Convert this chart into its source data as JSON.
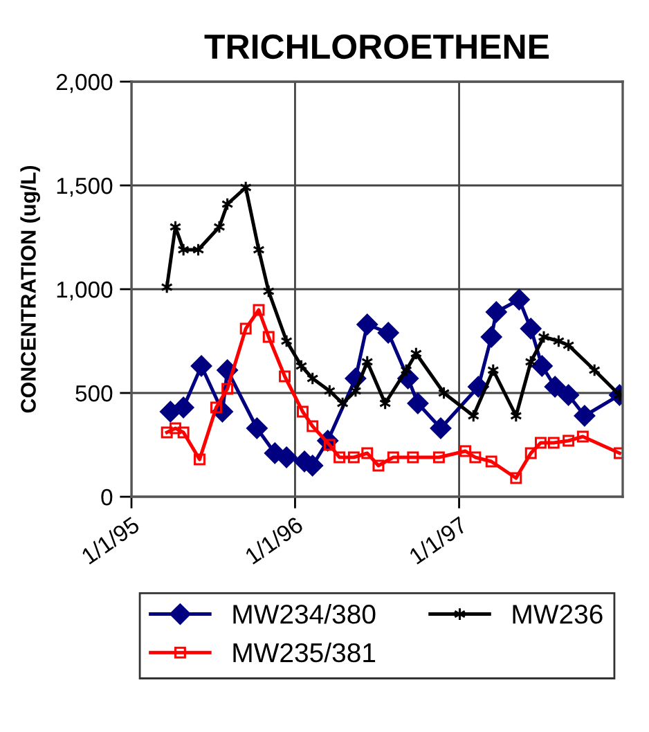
{
  "chart_data": {
    "type": "line",
    "title": "TRICHLOROETHENE",
    "ylabel": "CONCENTRATION (ug/L)",
    "xlim": [
      "1995-01-01",
      "1998-01-01"
    ],
    "xticks": [
      {
        "value": "1995-01-01",
        "label": "1/1/95"
      },
      {
        "value": "1996-01-01",
        "label": "1/1/96"
      },
      {
        "value": "1997-01-01",
        "label": "1/1/97"
      }
    ],
    "ylim": [
      0,
      2000
    ],
    "yticks": [
      0,
      {
        "value": 500,
        "label": "500"
      },
      {
        "value": 1000,
        "label": "1,000"
      },
      {
        "value": 1500,
        "label": "1,500"
      },
      {
        "value": 2000,
        "label": "2,000"
      }
    ],
    "grid": true,
    "legend": "bottom",
    "line_style": "solid",
    "series": [
      {
        "name": "MW234/380",
        "color": "#000080",
        "marker": "diamond",
        "x": [
          "1995-03-29",
          "1995-04-27",
          "1995-06-06",
          "1995-07-23",
          "1995-08-03",
          "1995-10-08",
          "1995-11-17",
          "1995-12-13",
          "1996-01-22",
          "1996-02-09",
          "1996-03-14",
          "1996-05-15",
          "1996-06-10",
          "1996-07-27",
          "1996-09-09",
          "1996-10-01",
          "1996-11-21",
          "1997-02-13",
          "1997-03-14",
          "1997-03-25",
          "1997-05-15",
          "1997-06-10",
          "1997-07-05",
          "1997-08-03",
          "1997-09-02",
          "1997-10-08",
          "1997-12-25"
        ],
        "values": [
          410,
          430,
          630,
          410,
          610,
          330,
          210,
          190,
          170,
          150,
          270,
          570,
          830,
          790,
          570,
          450,
          330,
          530,
          770,
          890,
          950,
          810,
          630,
          530,
          490,
          390,
          490
        ]
      },
      {
        "name": "MW235/381",
        "color": "#ff0000",
        "marker": "square",
        "x": [
          "1995-03-21",
          "1995-04-09",
          "1995-04-27",
          "1995-06-02",
          "1995-07-09",
          "1995-08-03",
          "1995-09-13",
          "1995-10-12",
          "1995-11-03",
          "1995-12-09",
          "1996-01-18",
          "1996-02-09",
          "1996-03-18",
          "1996-04-09",
          "1996-05-11",
          "1996-06-10",
          "1996-07-05",
          "1996-08-07",
          "1996-09-20",
          "1996-11-17",
          "1997-01-15",
          "1997-02-06",
          "1997-03-14",
          "1997-05-08",
          "1997-06-10",
          "1997-07-02",
          "1997-07-31",
          "1997-09-02",
          "1997-10-04",
          "1997-12-25"
        ],
        "values": [
          310,
          330,
          310,
          180,
          430,
          520,
          810,
          900,
          770,
          580,
          410,
          340,
          250,
          190,
          190,
          210,
          150,
          190,
          190,
          190,
          220,
          190,
          170,
          90,
          210,
          260,
          260,
          270,
          290,
          210
        ]
      },
      {
        "name": "MW236",
        "color": "#000000",
        "marker": "cross",
        "x": [
          "1995-03-21",
          "1995-04-09",
          "1995-04-27",
          "1995-05-30",
          "1995-07-16",
          "1995-08-03",
          "1995-09-13",
          "1995-10-12",
          "1995-11-03",
          "1995-12-13",
          "1996-01-15",
          "1996-02-09",
          "1996-03-18",
          "1996-04-16",
          "1996-05-15",
          "1996-06-10",
          "1996-07-20",
          "1996-09-05",
          "1996-09-27",
          "1996-11-28",
          "1997-02-02",
          "1997-03-18",
          "1997-05-08",
          "1997-06-10",
          "1997-07-09",
          "1997-08-11",
          "1997-09-02",
          "1997-10-30",
          "1997-12-25"
        ],
        "values": [
          1010,
          1300,
          1190,
          1190,
          1300,
          1410,
          1490,
          1190,
          990,
          750,
          630,
          570,
          510,
          450,
          510,
          650,
          450,
          610,
          690,
          500,
          390,
          610,
          390,
          650,
          770,
          750,
          730,
          610,
          490
        ]
      }
    ]
  }
}
